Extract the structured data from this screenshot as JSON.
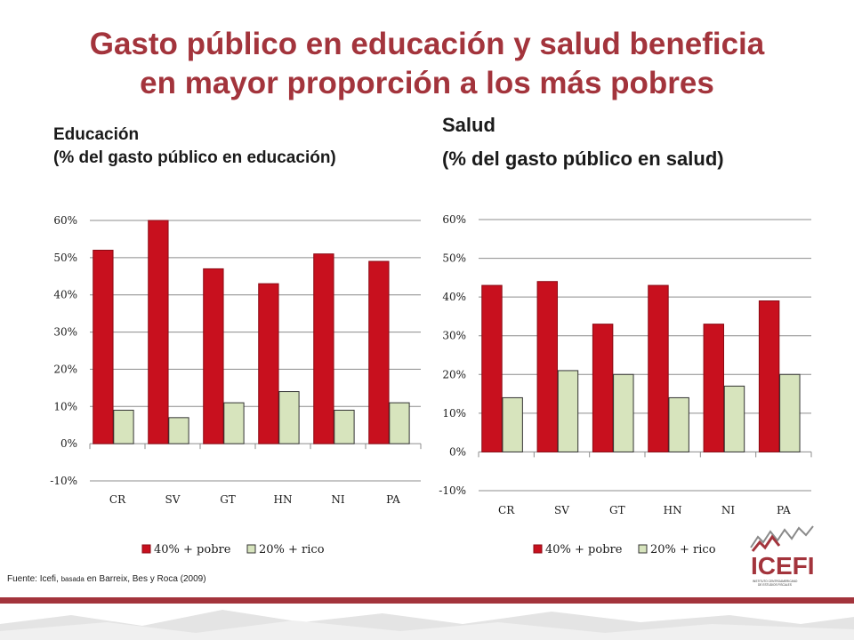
{
  "title": {
    "line1": "Gasto público en educación y salud beneficia",
    "line2": "en mayor proporción a los más pobres"
  },
  "source": {
    "prefix": "Fuente: Icefi,",
    "small": "basada",
    "suffix": "en Barreix, Bes y Roca (2009)"
  },
  "logo": {
    "text": "ICEFI",
    "subtext": "INSTITUTO CENTROAMERICANO DE ESTUDIOS FISCALES"
  },
  "colors": {
    "title": "#a3343c",
    "pobre": "#c8101e",
    "rico": "#d7e4bd",
    "footer": "#a3343c"
  },
  "chart_data": [
    {
      "type": "bar",
      "subtitle_line1": "Educación",
      "subtitle_line2": "(% del gasto público en educación)",
      "categories": [
        "CR",
        "SV",
        "GT",
        "HN",
        "NI",
        "PA"
      ],
      "series": [
        {
          "name": "40% + pobre",
          "values": [
            0.52,
            0.6,
            0.47,
            0.43,
            0.51,
            0.49
          ]
        },
        {
          "name": "20% + rico",
          "values": [
            0.09,
            0.07,
            0.11,
            0.14,
            0.09,
            0.11
          ]
        }
      ],
      "ylim": [
        -0.1,
        0.6
      ],
      "yticks": [
        0.6,
        0.5,
        0.4,
        0.3,
        0.2,
        0.1,
        0.0,
        -0.1
      ],
      "ytick_labels": [
        "60%",
        "50%",
        "40%",
        "30%",
        "20%",
        "10%",
        "0%",
        "-10%"
      ],
      "grid": true,
      "legend": "bottom"
    },
    {
      "type": "bar",
      "subtitle_line1": "Salud",
      "subtitle_line2": "(% del gasto público en salud)",
      "categories": [
        "CR",
        "SV",
        "GT",
        "HN",
        "NI",
        "PA"
      ],
      "series": [
        {
          "name": "40% + pobre",
          "values": [
            0.43,
            0.44,
            0.33,
            0.43,
            0.33,
            0.39
          ]
        },
        {
          "name": "20% + rico",
          "values": [
            0.14,
            0.21,
            0.2,
            0.14,
            0.17,
            0.2
          ]
        }
      ],
      "ylim": [
        -0.1,
        0.6
      ],
      "yticks": [
        0.6,
        0.5,
        0.4,
        0.3,
        0.2,
        0.1,
        0.0,
        -0.1
      ],
      "ytick_labels": [
        "60%",
        "50%",
        "40%",
        "30%",
        "20%",
        "10%",
        "0%",
        "-10%"
      ],
      "grid": true,
      "legend": "bottom"
    }
  ]
}
